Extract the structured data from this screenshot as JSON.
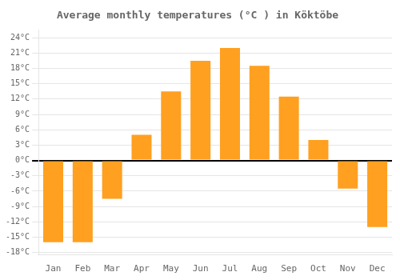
{
  "chart_data": {
    "type": "bar",
    "title": "Average monthly temperatures (°C ) in Köktöbe",
    "categories": [
      "Jan",
      "Feb",
      "Mar",
      "Apr",
      "May",
      "Jun",
      "Jul",
      "Aug",
      "Sep",
      "Oct",
      "Nov",
      "Dec"
    ],
    "values": [
      -16,
      -16,
      -7.5,
      5,
      13.5,
      19.5,
      22,
      18.5,
      12.5,
      4,
      -5.5,
      -13
    ],
    "color": "#FFA020",
    "ylim": [
      -18.5,
      25.5
    ],
    "yticks": [
      {
        "value": -18,
        "label": "-18°C"
      },
      {
        "value": -15,
        "label": "-15°C"
      },
      {
        "value": -12,
        "label": "-12°C"
      },
      {
        "value": -9,
        "label": "-9°C"
      },
      {
        "value": -6,
        "label": "-6°C"
      },
      {
        "value": -3,
        "label": "-3°C"
      },
      {
        "value": 0,
        "label": "0°C"
      },
      {
        "value": 3,
        "label": "3°C"
      },
      {
        "value": 6,
        "label": "6°C"
      },
      {
        "value": 9,
        "label": "9°C"
      },
      {
        "value": 12,
        "label": "12°C"
      },
      {
        "value": 15,
        "label": "15°C"
      },
      {
        "value": 18,
        "label": "18°C"
      },
      {
        "value": 21,
        "label": "21°C"
      },
      {
        "value": 24,
        "label": "24°C"
      }
    ],
    "grid": true
  }
}
